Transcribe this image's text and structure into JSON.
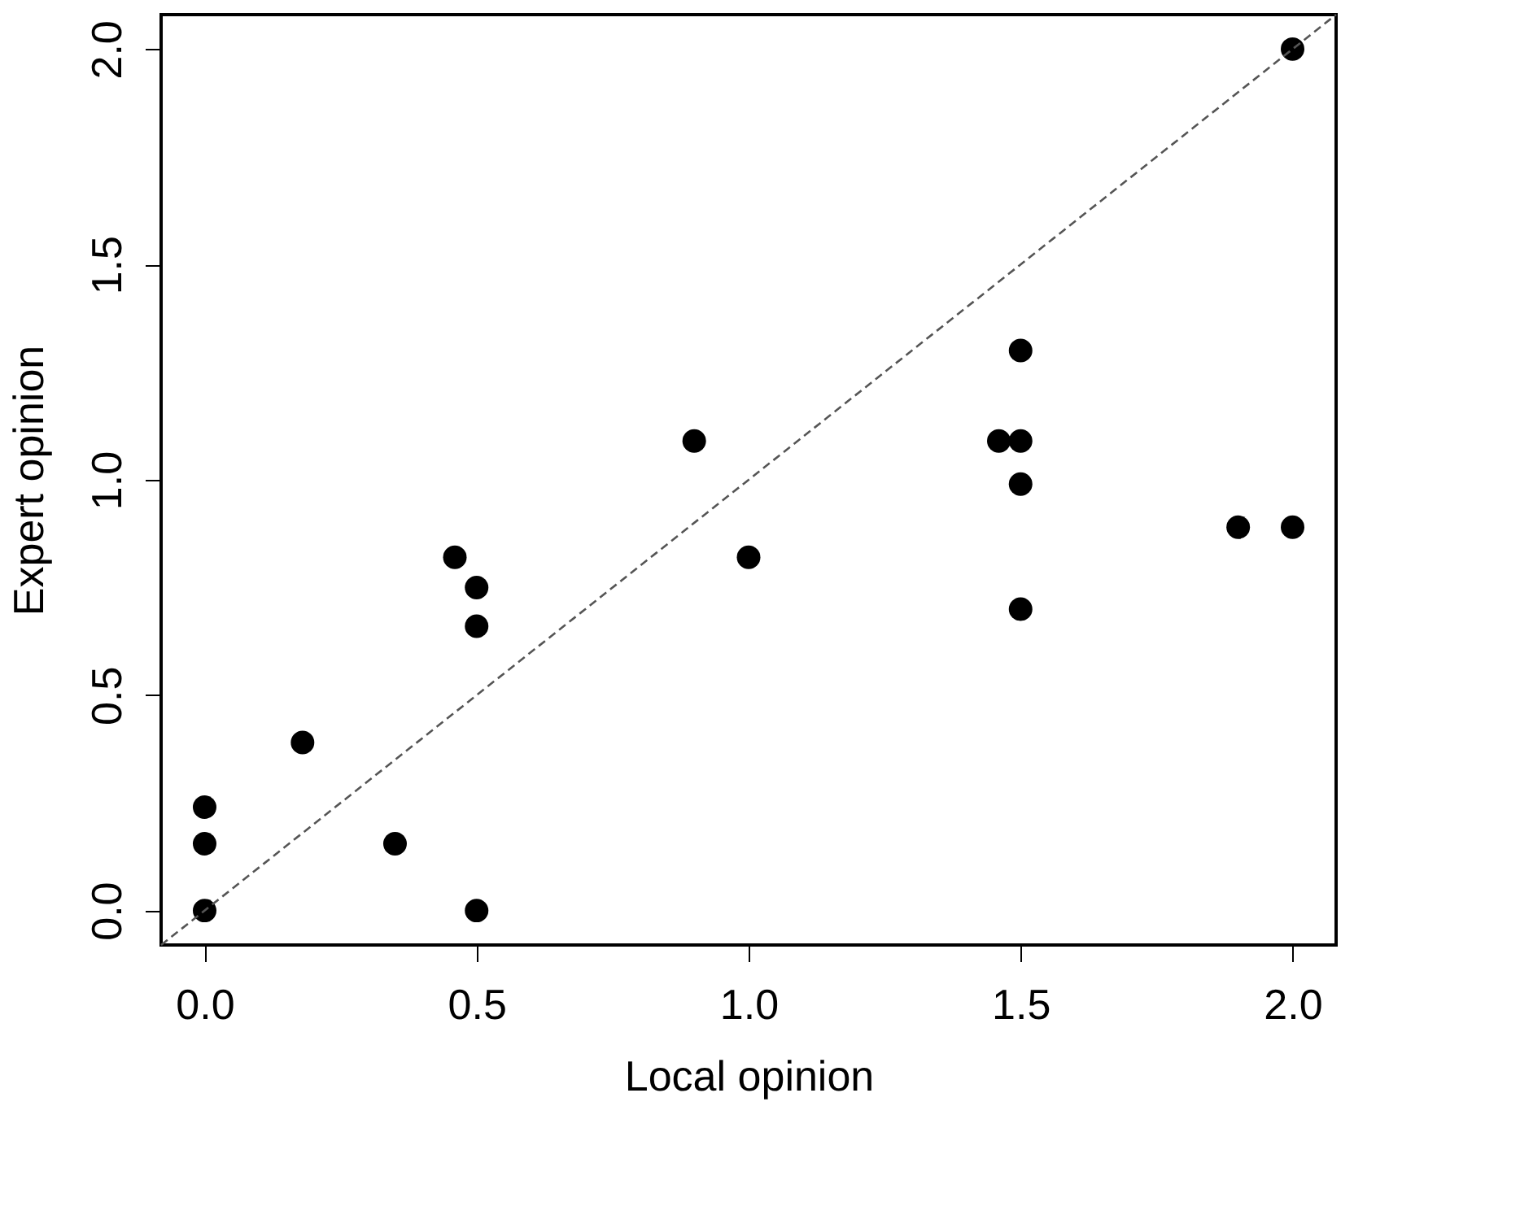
{
  "chart_data": {
    "type": "scatter",
    "xlabel": "Local opinion",
    "ylabel": "Expert opinion",
    "xlim": [
      -0.08,
      2.08
    ],
    "ylim": [
      -0.08,
      2.08
    ],
    "xticks": [
      {
        "value": 0,
        "label": "0.0"
      },
      0.5,
      {
        "value": 1,
        "label": "1.0"
      },
      1.5,
      {
        "value": 2,
        "label": "2.0"
      }
    ],
    "yticks": [
      {
        "value": 0,
        "label": "0.0"
      },
      0.5,
      {
        "value": 1,
        "label": "1.0"
      },
      1.5,
      {
        "value": 2,
        "label": "2.0"
      }
    ],
    "grid": false,
    "series": [
      {
        "color": "#000000",
        "marker": "circle",
        "x": [
          0,
          0,
          0,
          0.18,
          0.35,
          0.46,
          0.5,
          0.5,
          0.5,
          0.9,
          1.0,
          1.46,
          1.5,
          1.5,
          1.5,
          1.5,
          1.9,
          2.0,
          2.0
        ],
        "values": [
          0,
          0.155,
          0.24,
          0.39,
          0.155,
          0.82,
          0.75,
          0.66,
          0,
          1.09,
          0.82,
          1.09,
          1.09,
          1.3,
          0.99,
          0.7,
          0.89,
          0.89,
          2.0
        ]
      },
      {
        "type": "line",
        "color": "#555555",
        "line_style": "dashed",
        "marker": "none",
        "x": [
          -0.08,
          2.08
        ],
        "values": [
          -0.08,
          2.08
        ]
      }
    ]
  }
}
